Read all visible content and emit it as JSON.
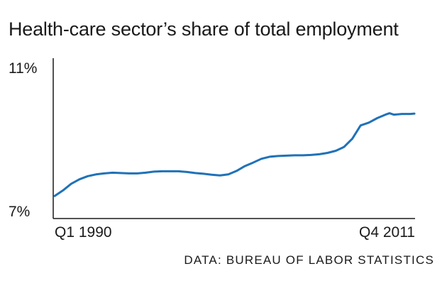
{
  "chart_data": {
    "type": "line",
    "title": "Health-care sector’s share of total employment",
    "subtitle": "",
    "xlabel": "",
    "ylabel": "",
    "source": "DATA: BUREAU OF LABOR STATISTICS",
    "x_tick_labels": [
      "Q1 1990",
      "Q4 2011"
    ],
    "y_tick_labels": [
      "7%",
      "11%"
    ],
    "ylim": [
      7,
      11
    ],
    "grid": false,
    "legend": "none",
    "line_color": "#1f72b8",
    "axis_color": "#1a1a1a",
    "series": [
      {
        "name": "",
        "x": [
          1990.0,
          1990.5,
          1991.0,
          1991.5,
          1992.0,
          1992.5,
          1993.0,
          1993.5,
          1994.0,
          1994.5,
          1995.0,
          1995.5,
          1996.0,
          1996.5,
          1997.0,
          1997.5,
          1998.0,
          1998.5,
          1999.0,
          1999.5,
          2000.0,
          2000.5,
          2001.0,
          2001.5,
          2002.0,
          2002.5,
          2003.0,
          2003.5,
          2004.0,
          2004.5,
          2005.0,
          2005.5,
          2006.0,
          2006.5,
          2007.0,
          2007.5,
          2008.0,
          2008.5,
          2009.0,
          2009.5,
          2010.0,
          2010.25,
          2010.5,
          2010.75,
          2011.0,
          2011.5,
          2011.75
        ],
        "y": [
          7.22,
          7.38,
          7.57,
          7.7,
          7.79,
          7.84,
          7.87,
          7.89,
          7.88,
          7.87,
          7.87,
          7.89,
          7.92,
          7.93,
          7.93,
          7.93,
          7.91,
          7.88,
          7.86,
          7.83,
          7.81,
          7.84,
          7.94,
          8.08,
          8.18,
          8.29,
          8.35,
          8.37,
          8.38,
          8.39,
          8.39,
          8.4,
          8.42,
          8.46,
          8.52,
          8.63,
          8.87,
          9.25,
          9.33,
          9.46,
          9.56,
          9.6,
          9.56,
          9.57,
          9.58,
          9.58,
          9.59
        ]
      }
    ]
  }
}
